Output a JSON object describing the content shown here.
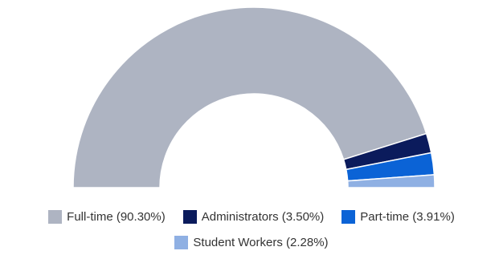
{
  "chart_data": {
    "type": "pie",
    "variant": "semi-donut",
    "series": [
      {
        "name": "Full-time",
        "value": 90.3,
        "label": "Full-time (90.30%)",
        "color": "#aeb4c2"
      },
      {
        "name": "Administrators",
        "value": 3.5,
        "label": "Administrators (3.50%)",
        "color": "#0b1b5c"
      },
      {
        "name": "Part-time",
        "value": 3.91,
        "label": "Part-time (3.91%)",
        "color": "#0b63d6"
      },
      {
        "name": "Student Workers",
        "value": 2.28,
        "label": "Student Workers (2.28%)",
        "color": "#8fb0e3"
      }
    ],
    "legend_position": "bottom"
  }
}
